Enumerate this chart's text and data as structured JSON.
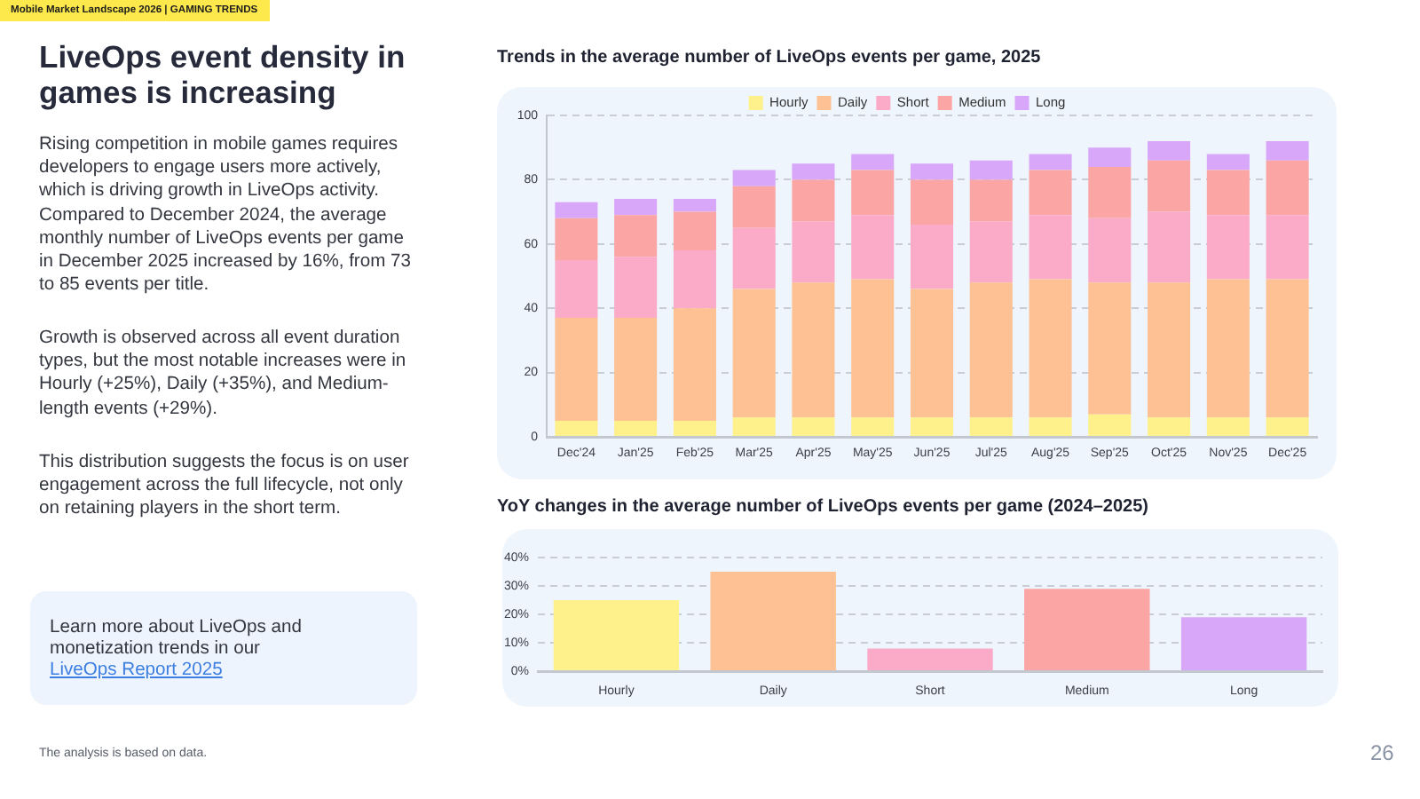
{
  "chart_data": [
    {
      "type": "other",
      "title": "LiveOps event density in games is increasing",
      "annotations": [
        "Mobile Market Landscape 2026 | GAMING TRENDS",
        "Rising competition in mobile games requires developers to engage users more actively, which is driving growth in LiveOps activity. Compared to December 2024, the average monthly number of LiveOps events per game in December 2025 increased by 16%, from 73 to 85 events per title.",
        "Growth is observed across all event duration types, but the most notable increases were in Hourly (+25%), Daily (+35%), and Medium-length events (+29%).",
        "This distribution suggests the focus is on user engagement across the full lifecycle, not only on retaining players in the short term.",
        "Learn more about LiveOps and monetization trends in our",
        "LiveOps Report 2025",
        "The analysis is based on data.",
        "26"
      ]
    },
    {
      "type": "bar",
      "title": "Trends in the average number of LiveOps events per game, 2025",
      "categories": [
        "Dec'24",
        "Jan'25",
        "Feb'25",
        "Mar'25",
        "Apr'25",
        "May'25",
        "Jun'25",
        "Jul'25",
        "Aug'25",
        "Sep'25",
        "Oct'25",
        "Nov'25",
        "Dec'25"
      ],
      "stacked": true,
      "series": [
        {
          "name": "Hourly",
          "color": "#fef08a",
          "values": [
            5,
            5,
            5,
            6,
            6,
            6,
            6,
            6,
            6,
            7,
            6,
            6,
            6
          ]
        },
        {
          "name": "Daily",
          "color": "#fdc193",
          "values": [
            32,
            32,
            35,
            40,
            42,
            43,
            40,
            42,
            43,
            41,
            42,
            43,
            43
          ]
        },
        {
          "name": "Short",
          "color": "#fbabc8",
          "values": [
            18,
            19,
            18,
            19,
            19,
            20,
            20,
            19,
            20,
            20,
            22,
            20,
            20
          ]
        },
        {
          "name": "Medium",
          "color": "#fca5a5",
          "values": [
            13,
            13,
            12,
            13,
            13,
            14,
            14,
            13,
            14,
            16,
            16,
            14,
            17
          ]
        },
        {
          "name": "Long",
          "color": "#d8a7f9",
          "values": [
            5,
            5,
            4,
            5,
            5,
            5,
            5,
            6,
            5,
            6,
            6,
            5,
            6
          ]
        }
      ],
      "ylim": [
        0,
        100
      ],
      "yticks": [
        0,
        20,
        40,
        60,
        80,
        100
      ],
      "grid": "y",
      "legend": "top"
    },
    {
      "type": "bar",
      "title": "YoY changes in the average number of LiveOps events per game (2024–2025)",
      "categories": [
        "Hourly",
        "Daily",
        "Short",
        "Medium",
        "Long"
      ],
      "values": [
        25,
        35,
        8,
        29,
        19
      ],
      "colors": [
        "#fef08a",
        "#fdc193",
        "#fbabc8",
        "#fca5a5",
        "#d8a7f9"
      ],
      "ylim": [
        0,
        40
      ],
      "yticks": [
        {
          "value": 0,
          "label": "0%"
        },
        {
          "value": 10,
          "label": "10%"
        },
        {
          "value": 20,
          "label": "20%"
        },
        {
          "value": 30,
          "label": "30%"
        },
        {
          "value": 40,
          "label": "40%"
        }
      ],
      "grid": "y"
    }
  ]
}
